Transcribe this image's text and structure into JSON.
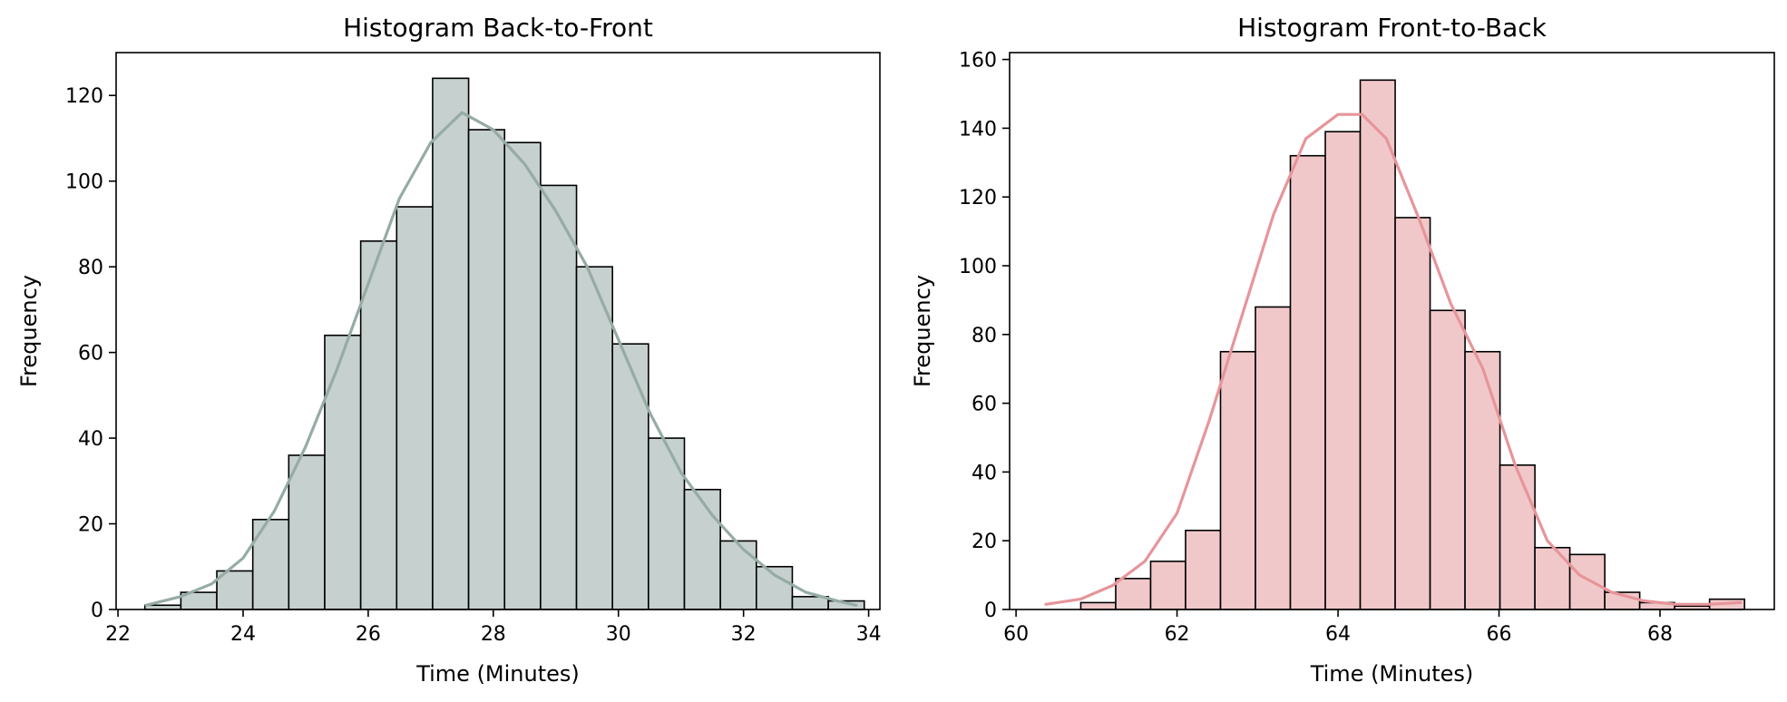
{
  "chart_data": [
    {
      "type": "bar",
      "title": "Histogram Back-to-Front",
      "xlabel": "Time (Minutes)",
      "ylabel": "Frequency",
      "xlim": [
        21.97,
        34.18
      ],
      "ylim": [
        0,
        130
      ],
      "xticks": [
        22,
        24,
        26,
        28,
        30,
        32,
        34
      ],
      "yticks": [
        0,
        20,
        40,
        60,
        80,
        100,
        120
      ],
      "bin_start": 22.43,
      "bin_width": 0.575,
      "values": [
        1,
        4,
        9,
        21,
        36,
        64,
        86,
        94,
        124,
        112,
        109,
        99,
        80,
        62,
        40,
        28,
        16,
        10,
        3,
        2
      ],
      "kde": {
        "x": [
          22.45,
          23.0,
          23.5,
          24.0,
          24.5,
          25.0,
          25.5,
          26.0,
          26.5,
          27.0,
          27.5,
          28.0,
          28.5,
          29.0,
          29.5,
          30.0,
          30.5,
          31.0,
          31.5,
          32.0,
          32.5,
          33.0,
          33.5,
          33.8
        ],
        "y": [
          1,
          3,
          6,
          12,
          23,
          38,
          56,
          76,
          96,
          109,
          116,
          112,
          104,
          93,
          80,
          63,
          46,
          32,
          22,
          14,
          8,
          4,
          2,
          1
        ]
      },
      "bar_fill": "#c6d0ce",
      "kde_color": "#96aba5",
      "edge_color": "#000000",
      "grid": false
    },
    {
      "type": "bar",
      "title": "Histogram Front-to-Back",
      "xlabel": "Time (Minutes)",
      "ylabel": "Frequency",
      "xlim": [
        59.92,
        69.42
      ],
      "ylim": [
        0,
        162
      ],
      "xticks": [
        60,
        62,
        64,
        66,
        68
      ],
      "yticks": [
        0,
        20,
        40,
        60,
        80,
        100,
        120,
        140,
        160
      ],
      "bin_start": 60.37,
      "bin_width": 0.434,
      "values": [
        0,
        2,
        9,
        14,
        23,
        75,
        88,
        132,
        139,
        154,
        114,
        87,
        75,
        42,
        18,
        16,
        5,
        2,
        1,
        3
      ],
      "kde": {
        "x": [
          60.37,
          60.8,
          61.2,
          61.6,
          62.0,
          62.4,
          62.8,
          63.2,
          63.6,
          64.0,
          64.3,
          64.6,
          65.0,
          65.4,
          65.8,
          66.2,
          66.6,
          67.0,
          67.4,
          67.8,
          68.2,
          68.6,
          69.0
        ],
        "y": [
          1.5,
          3,
          7,
          14,
          28,
          55,
          85,
          115,
          137,
          144,
          144,
          137,
          114,
          89,
          70,
          42,
          20,
          10,
          5,
          2.5,
          1.5,
          1.5,
          2
        ]
      },
      "bar_fill": "#f1c8ca",
      "kde_color": "#e6959a",
      "edge_color": "#000000",
      "grid": false
    }
  ]
}
